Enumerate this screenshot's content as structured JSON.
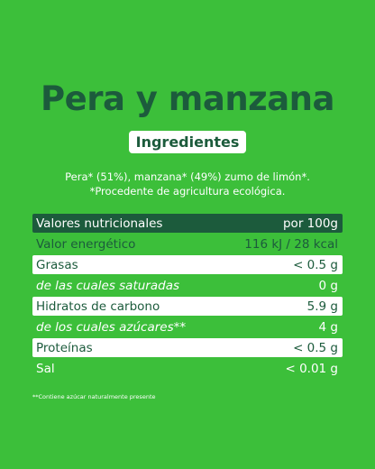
{
  "title": "Pera y manzana",
  "ingredients_heading": "Ingredientes",
  "ingredients_text": "Pera* (51%), manzana* (49%)  zumo de limón*. *Procedente de agricultura ecológica.",
  "table": {
    "header": [
      "Valores nutricionales",
      "por 100g"
    ],
    "rows": [
      [
        "Valor energético",
        "116 kJ / 28 kcal"
      ],
      [
        "Grasas",
        "< 0.5 g"
      ],
      [
        "de las cuales saturadas",
        "0 g"
      ],
      [
        "Hidratos de carbono",
        "5.9 g"
      ],
      [
        "de los cuales azúcares**",
        "4 g"
      ],
      [
        "Proteínas",
        "< 0.5 g"
      ],
      [
        "Sal",
        "< 0.01 g"
      ]
    ]
  },
  "footnote": "**Contiene azúcar naturalmente presente"
}
